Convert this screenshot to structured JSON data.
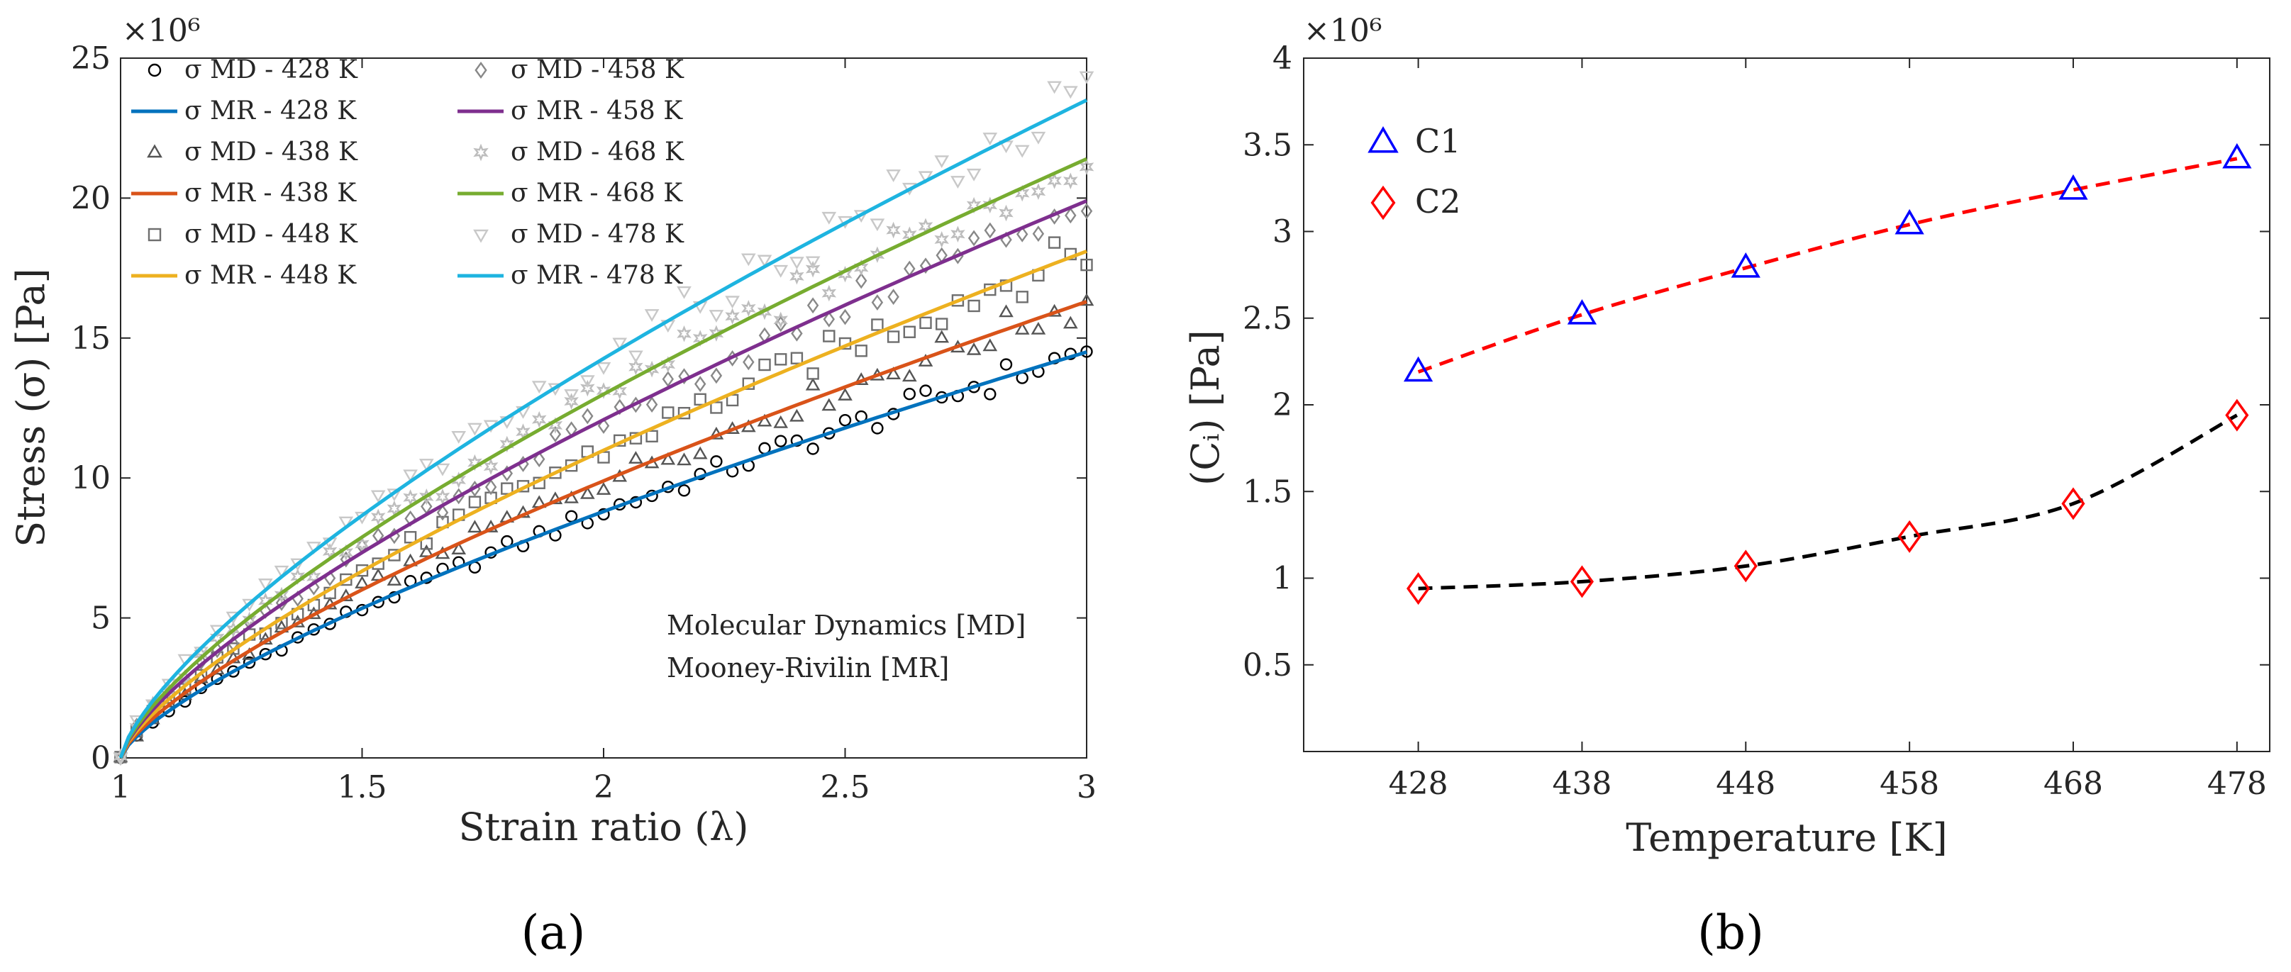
{
  "chart_data": [
    {
      "type": "line",
      "panel_label": "(a)",
      "xlabel": "Strain ratio (λ)",
      "ylabel": "Stress (σ) [Pa]",
      "exponent_label": "×10⁶",
      "xlim": [
        1,
        3
      ],
      "ylim": [
        0,
        25
      ],
      "xticks": [
        "1",
        "1.5",
        "2",
        "2.5",
        "3"
      ],
      "yticks": [
        "0",
        "5",
        "10",
        "15",
        "20",
        "25"
      ],
      "annotation": [
        "Molecular Dynamics [MD]",
        "Mooney-Rivilin [MR]"
      ],
      "legend_position": "top-left",
      "series": [
        {
          "temp": "428 K",
          "md_label": "σ MD - 428 K",
          "mr_label": "σ MR - 428 K",
          "end_value": 14.5,
          "color": "#0072BD",
          "md_color": "#000000",
          "marker": "circle",
          "noise": 0.25
        },
        {
          "temp": "438 K",
          "md_label": "σ MD - 438 K",
          "mr_label": "σ MR - 438 K",
          "end_value": 16.3,
          "color": "#D95319",
          "md_color": "#555555",
          "marker": "triangle",
          "noise": 0.3
        },
        {
          "temp": "448 K",
          "md_label": "σ MD - 448 K",
          "mr_label": "σ MR - 448 K",
          "end_value": 18.1,
          "color": "#EDB120",
          "md_color": "#6e6e6e",
          "marker": "square",
          "noise": 0.35
        },
        {
          "temp": "458 K",
          "md_label": "σ MD - 458 K",
          "mr_label": "σ MR - 458 K",
          "end_value": 19.9,
          "color": "#7E2F8E",
          "md_color": "#888888",
          "marker": "diamond",
          "noise": 0.35
        },
        {
          "temp": "468 K",
          "md_label": "σ MD - 468 K",
          "mr_label": "σ MR - 468 K",
          "end_value": 21.4,
          "color": "#77AC30",
          "md_color": "#bdbdbd",
          "marker": "star",
          "noise": 0.45
        },
        {
          "temp": "478 K",
          "md_label": "σ MD - 478 K",
          "mr_label": "σ MR - 478 K",
          "end_value": 23.5,
          "color": "#1EB4E0",
          "md_color": "#c8c8c8",
          "marker": "triangle-down",
          "noise": 0.5
        }
      ]
    },
    {
      "type": "scatter",
      "panel_label": "(b)",
      "xlabel": "Temperature [K]",
      "ylabel": "(Cᵢ) [Pa]",
      "exponent_label": "×10⁶",
      "xlim": [
        421,
        480
      ],
      "ylim": [
        0,
        4
      ],
      "xticks": [
        "428",
        "438",
        "448",
        "458",
        "468",
        "478"
      ],
      "yticks": [
        "0.5",
        "1",
        "1.5",
        "2",
        "2.5",
        "3",
        "3.5",
        "4"
      ],
      "legend_position": "top-left",
      "x": [
        428,
        438,
        448,
        458,
        468,
        478
      ],
      "series": [
        {
          "name": "C1",
          "values": [
            2.19,
            2.52,
            2.79,
            3.04,
            3.24,
            3.42
          ],
          "marker": "triangle",
          "color": "#0000FF",
          "line_color": "#FF0000"
        },
        {
          "name": "C2",
          "values": [
            0.94,
            0.98,
            1.07,
            1.24,
            1.43,
            1.94
          ],
          "marker": "diamond",
          "color": "#FF0000",
          "line_color": "#000000"
        }
      ]
    }
  ]
}
